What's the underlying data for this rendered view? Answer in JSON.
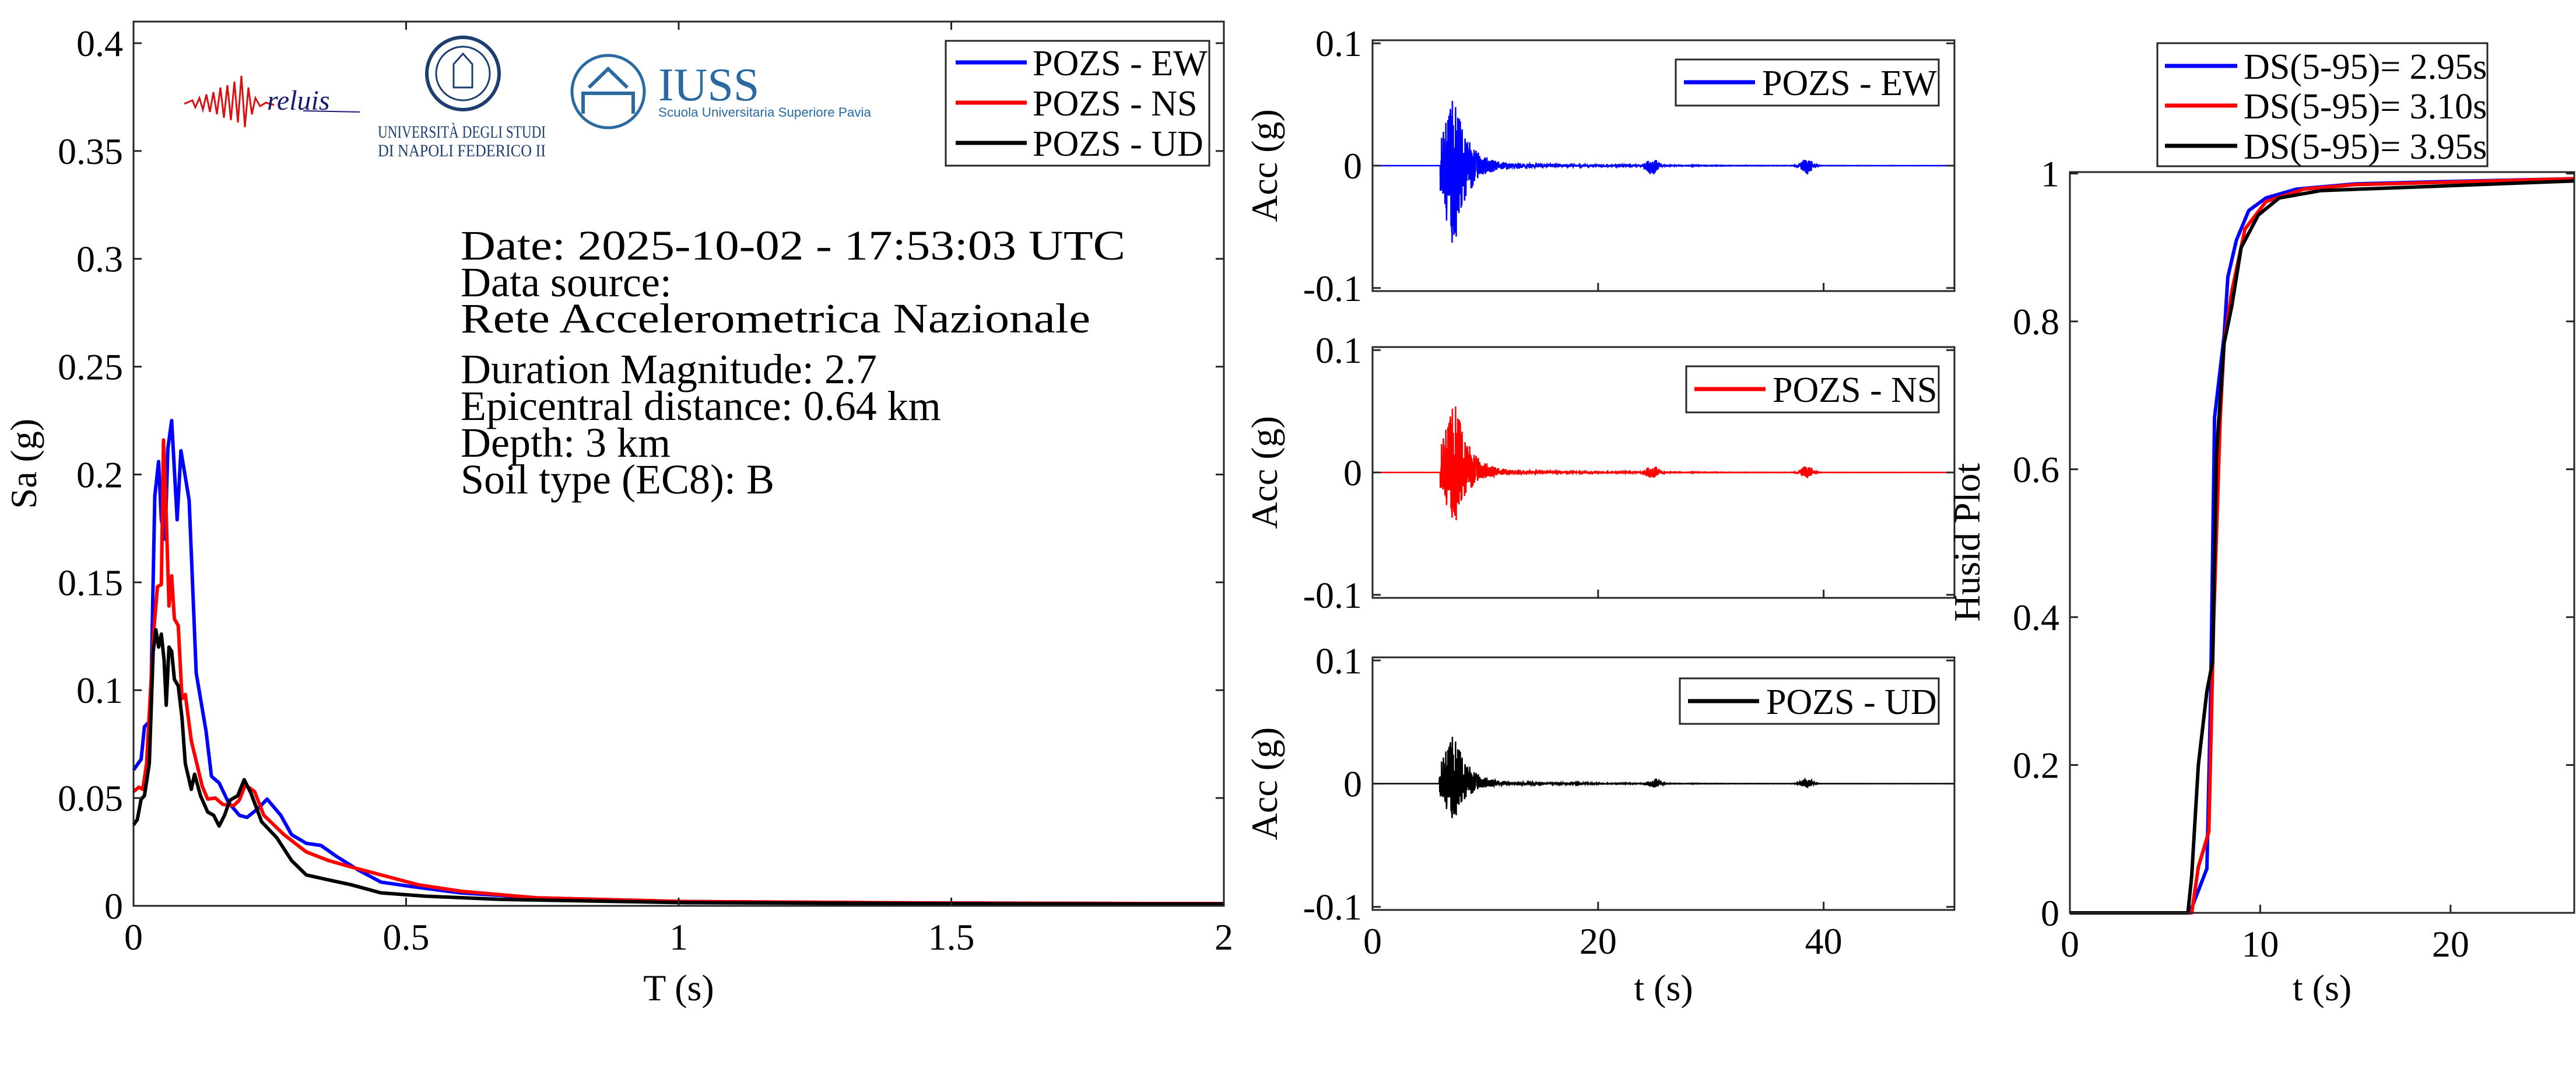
{
  "colors": {
    "EW": "#0000ff",
    "NS": "#ff0000",
    "UD": "#000000"
  },
  "logos": {
    "reluis": "reluis",
    "unina_line1": "UNIVERSITÀ DEGLI STUDI",
    "unina_line2": "DI NAPOLI FEDERICO II",
    "iuss": "IUSS",
    "iuss_sub": "Scuola Universitaria Superiore Pavia"
  },
  "annotation": {
    "date": "Date: 2025-10-02 - 17:53:03 UTC",
    "source_label": "Data source:",
    "source": "Rete Accelerometrica Nazionale",
    "magnitude": "Duration Magnitude: 2.7",
    "distance": "Epicentral distance: 0.64 km",
    "depth": "Depth: 3 km",
    "soil": "Soil type (EC8): B"
  },
  "chart_data": [
    {
      "type": "line",
      "id": "spectrum",
      "title": "",
      "xlabel": "T (s)",
      "ylabel": "Sa (g)",
      "xlim": [
        0,
        2
      ],
      "ylim": [
        0,
        0.41
      ],
      "xticks": [
        0,
        0.5,
        1,
        1.5,
        2
      ],
      "xtick_labels": [
        "0",
        "0.5",
        "1",
        "1.5",
        "2"
      ],
      "yticks": [
        0,
        0.05,
        0.1,
        0.15,
        0.2,
        0.25,
        0.3,
        0.35,
        0.4
      ],
      "ytick_labels": [
        "0",
        "0.05",
        "0.1",
        "0.15",
        "0.2",
        "0.25",
        "0.3",
        "0.35",
        "0.4"
      ],
      "legend_position": "top-right",
      "series": [
        {
          "name": "POZS - EW",
          "color": "#0000ff",
          "x": [
            0,
            0.014,
            0.02,
            0.031,
            0.039,
            0.046,
            0.051,
            0.058,
            0.063,
            0.07,
            0.08,
            0.087,
            0.095,
            0.102,
            0.115,
            0.126,
            0.133,
            0.143,
            0.157,
            0.174,
            0.194,
            0.208,
            0.228,
            0.245,
            0.27,
            0.29,
            0.317,
            0.344,
            0.372,
            0.413,
            0.454,
            0.508,
            0.6,
            0.74,
            1.01,
            1.5,
            2
          ],
          "y": [
            0.063,
            0.068,
            0.083,
            0.086,
            0.19,
            0.206,
            0.179,
            0.17,
            0.212,
            0.225,
            0.179,
            0.211,
            0.199,
            0.188,
            0.108,
            0.0915,
            0.081,
            0.06,
            0.057,
            0.048,
            0.042,
            0.041,
            0.045,
            0.0495,
            0.042,
            0.033,
            0.029,
            0.028,
            0.023,
            0.0165,
            0.011,
            0.009,
            0.006,
            0.0037,
            0.002,
            0.0013,
            0.001
          ]
        },
        {
          "name": "POZS - NS",
          "color": "#ff0000",
          "x": [
            0,
            0.01,
            0.017,
            0.024,
            0.037,
            0.044,
            0.051,
            0.055,
            0.06,
            0.065,
            0.07,
            0.075,
            0.082,
            0.089,
            0.095,
            0.106,
            0.116,
            0.126,
            0.136,
            0.15,
            0.164,
            0.184,
            0.194,
            0.205,
            0.222,
            0.239,
            0.276,
            0.317,
            0.358,
            0.399,
            0.467,
            0.522,
            0.6,
            0.74,
            1.01,
            1.5,
            2
          ],
          "y": [
            0.053,
            0.055,
            0.054,
            0.066,
            0.127,
            0.148,
            0.149,
            0.216,
            0.181,
            0.139,
            0.153,
            0.133,
            0.13,
            0.096,
            0.098,
            0.0765,
            0.066,
            0.0555,
            0.0495,
            0.05,
            0.047,
            0.0465,
            0.049,
            0.056,
            0.053,
            0.042,
            0.033,
            0.025,
            0.021,
            0.018,
            0.0135,
            0.0098,
            0.0068,
            0.0037,
            0.002,
            0.0013,
            0.001
          ]
        },
        {
          "name": "POZS - UD",
          "color": "#000000",
          "x": [
            0,
            0.007,
            0.014,
            0.02,
            0.029,
            0.036,
            0.041,
            0.046,
            0.051,
            0.056,
            0.06,
            0.065,
            0.07,
            0.075,
            0.082,
            0.089,
            0.095,
            0.106,
            0.112,
            0.123,
            0.136,
            0.147,
            0.157,
            0.167,
            0.177,
            0.191,
            0.203,
            0.215,
            0.235,
            0.263,
            0.29,
            0.317,
            0.358,
            0.399,
            0.454,
            0.535,
            0.672,
            1.01,
            1.5,
            2
          ],
          "y": [
            0.0375,
            0.04,
            0.0495,
            0.051,
            0.066,
            0.118,
            0.128,
            0.12,
            0.126,
            0.114,
            0.093,
            0.12,
            0.118,
            0.105,
            0.102,
            0.087,
            0.066,
            0.054,
            0.061,
            0.051,
            0.0435,
            0.042,
            0.037,
            0.042,
            0.049,
            0.051,
            0.0585,
            0.0525,
            0.039,
            0.0315,
            0.021,
            0.0143,
            0.012,
            0.0098,
            0.006,
            0.0045,
            0.003,
            0.0015,
            0.001,
            0.0008
          ]
        }
      ]
    },
    {
      "type": "line",
      "id": "acc_ew",
      "xlabel": "",
      "ylabel": "Acc (g)",
      "xlim": [
        0,
        51.6
      ],
      "ylim": [
        -0.1025,
        0.1025
      ],
      "yticks": [
        -0.1,
        0,
        0.1
      ],
      "ytick_labels": [
        "-0.1",
        "0",
        "0.1"
      ],
      "xticks": [
        0,
        20,
        40
      ],
      "xtick_labels": [],
      "legend_position": "top-right",
      "series": [
        {
          "name": "POZS - EW",
          "color": "#0000ff",
          "onset_s": 6.0,
          "peak_time_s": 7.2,
          "max_g": 0.053,
          "min_g": -0.063,
          "secondary_bursts_s": [
            24.8,
            38.5
          ]
        }
      ]
    },
    {
      "type": "line",
      "id": "acc_ns",
      "xlabel": "",
      "ylabel": "Acc (g)",
      "xlim": [
        0,
        51.6
      ],
      "ylim": [
        -0.1025,
        0.1025
      ],
      "yticks": [
        -0.1,
        0,
        0.1
      ],
      "ytick_labels": [
        "-0.1",
        "0",
        "0.1"
      ],
      "xticks": [
        0,
        20,
        40
      ],
      "xtick_labels": [],
      "legend_position": "top-right",
      "series": [
        {
          "name": "POZS - NS",
          "color": "#ff0000",
          "onset_s": 6.0,
          "peak_time_s": 7.3,
          "max_g": 0.054,
          "min_g": -0.039,
          "secondary_bursts_s": [
            24.8,
            38.5
          ]
        }
      ]
    },
    {
      "type": "line",
      "id": "acc_ud",
      "xlabel": "t (s)",
      "ylabel": "Acc (g)",
      "xlim": [
        0,
        51.6
      ],
      "ylim": [
        -0.1025,
        0.1025
      ],
      "yticks": [
        -0.1,
        0,
        0.1
      ],
      "ytick_labels": [
        "-0.1",
        "0",
        "0.1"
      ],
      "xticks": [
        0,
        20,
        40
      ],
      "xtick_labels": [
        "0",
        "20",
        "40"
      ],
      "legend_position": "top-right",
      "series": [
        {
          "name": "POZS - UD",
          "color": "#000000",
          "onset_s": 5.9,
          "peak_time_s": 7.2,
          "max_g": 0.038,
          "min_g": -0.028,
          "secondary_bursts_s": [
            25.0,
            38.5
          ]
        }
      ]
    },
    {
      "type": "line",
      "id": "husid",
      "xlabel": "t (s)",
      "ylabel": "Husid Plot",
      "xlim": [
        0,
        26.5
      ],
      "ylim": [
        0,
        1.002
      ],
      "xticks": [
        0,
        10,
        20
      ],
      "xtick_labels": [
        "0",
        "10",
        "20"
      ],
      "yticks": [
        0,
        0.2,
        0.4,
        0.6,
        0.8,
        1
      ],
      "ytick_labels": [
        "0",
        "0.2",
        "0.4",
        "0.6",
        "0.8",
        "1"
      ],
      "legend_position": "top (outside)",
      "series": [
        {
          "name": "DS(5-95)= 2.95s",
          "color": "#0000ff",
          "x": [
            0,
            6.3,
            7.2,
            7.4,
            7.6,
            8.1,
            8.3,
            8.75,
            9.4,
            10.3,
            11.9,
            15,
            19.4,
            26.5
          ],
          "y": [
            0,
            0,
            0.06,
            0.3,
            0.67,
            0.78,
            0.86,
            0.91,
            0.95,
            0.967,
            0.979,
            0.986,
            0.989,
            0.993
          ]
        },
        {
          "name": "DS(5-95)= 3.10s",
          "color": "#ff0000",
          "x": [
            0,
            6.4,
            6.75,
            7.3,
            7.55,
            7.9,
            8.1,
            8.5,
            9.2,
            10.3,
            12.3,
            15,
            19.4,
            26.5
          ],
          "y": [
            0,
            0,
            0.062,
            0.11,
            0.39,
            0.67,
            0.77,
            0.84,
            0.925,
            0.962,
            0.979,
            0.985,
            0.988,
            0.993
          ]
        },
        {
          "name": "DS(5-95)= 3.95s",
          "color": "#000000",
          "x": [
            0,
            6.2,
            6.4,
            6.75,
            7.2,
            7.5,
            7.7,
            8.1,
            8.5,
            9,
            9.9,
            11,
            13.2,
            19.4,
            26.5
          ],
          "y": [
            0,
            0,
            0.05,
            0.2,
            0.3,
            0.34,
            0.62,
            0.77,
            0.82,
            0.9,
            0.944,
            0.967,
            0.977,
            0.983,
            0.99
          ]
        }
      ]
    }
  ]
}
